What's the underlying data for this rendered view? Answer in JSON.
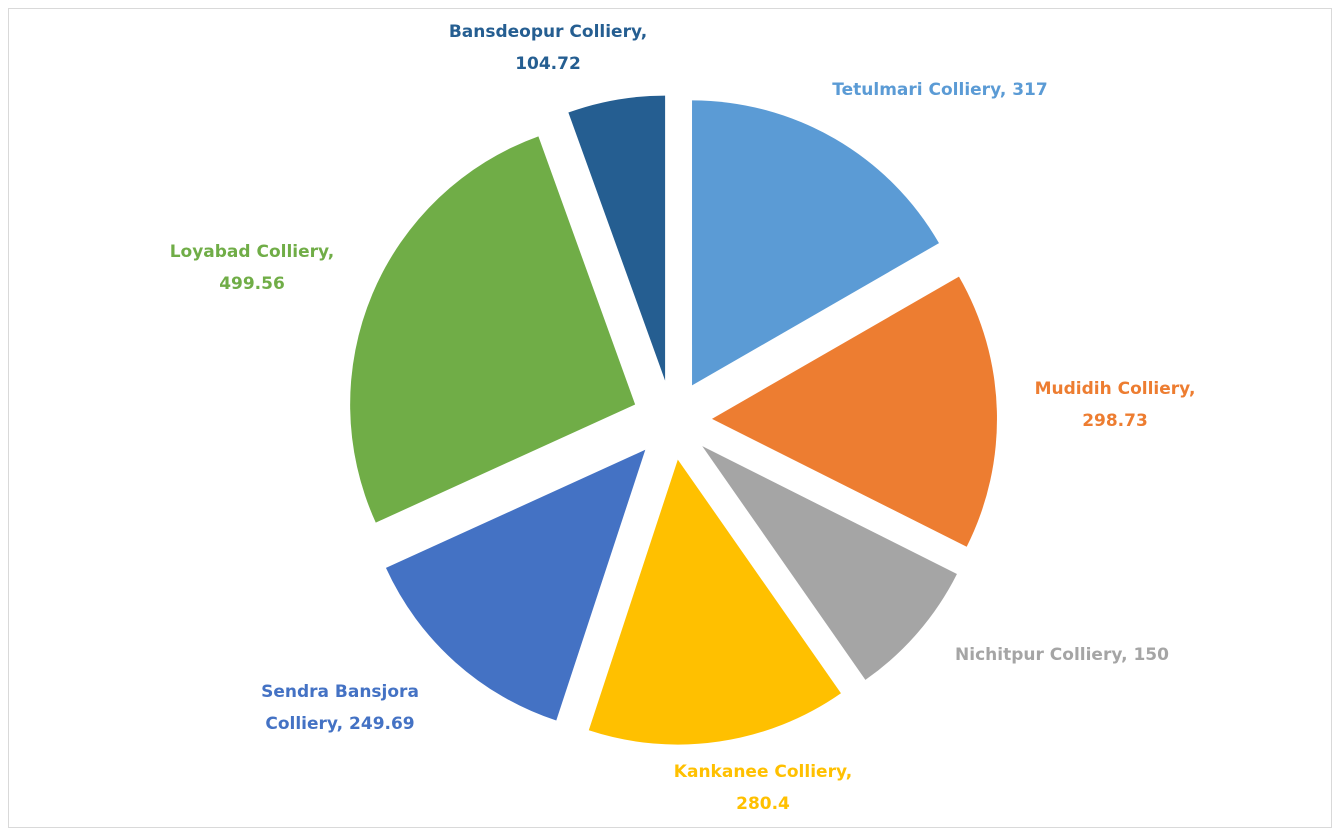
{
  "chart_data": {
    "type": "pie",
    "values": [
      317,
      298.73,
      150,
      280.4,
      249.69,
      499.56,
      104.72
    ],
    "value_labels": [
      "Tetulmari Colliery, 317",
      "Mudidih Colliery, 298.73",
      "Nichitpur Colliery, 150",
      "Kankanee Colliery, 280.4",
      "Sendra Bansjora Colliery, 249.69",
      "Loyabad Colliery, 499.56",
      "Bansdeopur Colliery, 104.72"
    ],
    "colors": [
      "#5b9bd5",
      "#ed7d31",
      "#a5a5a5",
      "#ffc000",
      "#4472c4",
      "#70ad47",
      "#255e91"
    ],
    "exploded": true
  }
}
